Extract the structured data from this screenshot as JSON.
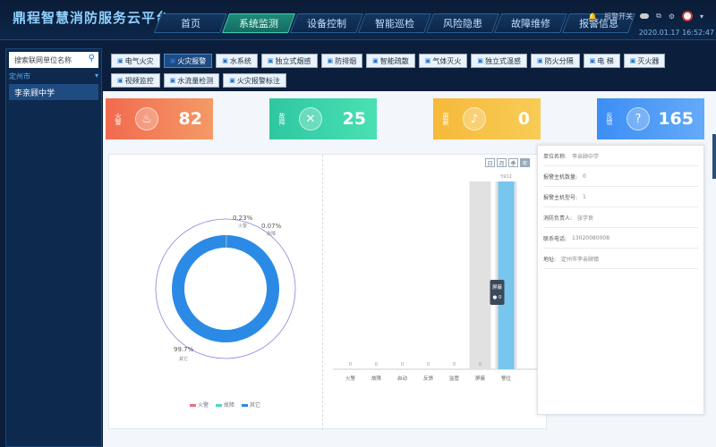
{
  "app": {
    "title": "鼎程智慧消防服务云平台"
  },
  "nav": [
    {
      "label": "首页"
    },
    {
      "label": "系统监测",
      "active": true
    },
    {
      "label": "设备控制"
    },
    {
      "label": "智能巡检"
    },
    {
      "label": "风险隐患"
    },
    {
      "label": "故障维修"
    },
    {
      "label": "报警信息"
    }
  ],
  "header": {
    "alarm_switch": "报警开关",
    "date": "2020.01.17",
    "time": "16:52:47"
  },
  "sidebar": {
    "search_placeholder": "搜索联网单位名称",
    "tree_root": "定州市",
    "items": [
      {
        "label": "李亲顾中学"
      }
    ]
  },
  "filters": [
    {
      "label": "电气火灾"
    },
    {
      "label": "火灾报警",
      "active": true
    },
    {
      "label": "水系统"
    },
    {
      "label": "独立式烟感"
    },
    {
      "label": "防排烟"
    },
    {
      "label": "智能疏散"
    },
    {
      "label": "气体灭火"
    },
    {
      "label": "独立式温感"
    },
    {
      "label": "防火分隔"
    },
    {
      "label": "电 梯"
    },
    {
      "label": "灭火器"
    },
    {
      "label": "视频监控"
    },
    {
      "label": "水流量检测"
    },
    {
      "label": "火灾报警标注"
    }
  ],
  "cards": [
    {
      "label": "火警",
      "value": "82",
      "color1": "#f26a4f",
      "color2": "#f49a66",
      "icon": "fire-icon",
      "glyph": "♨"
    },
    {
      "label": "故障",
      "value": "25",
      "color1": "#2fc7a0",
      "color2": "#49e0b4",
      "icon": "tools-icon",
      "glyph": "✕"
    },
    {
      "label": "屏蔽",
      "value": "0",
      "color1": "#f6b93b",
      "color2": "#f8cc56",
      "icon": "bell-off-icon",
      "glyph": "♪"
    },
    {
      "label": "反馈",
      "value": "165",
      "color1": "#3c8ef5",
      "color2": "#64aaf8",
      "icon": "feedback-icon",
      "glyph": "?"
    }
  ],
  "chart_data": [
    {
      "type": "pie",
      "labels": [
        "火警",
        "故障",
        "其它"
      ],
      "values": [
        0.23,
        0.07,
        99.7
      ],
      "value_labels": [
        "0.23%",
        "0.07%",
        "99.7%"
      ],
      "colors": [
        "#e8707a",
        "#4dd9c0",
        "#2b8ae6"
      ],
      "legend": "bottom"
    },
    {
      "type": "bar",
      "categories": [
        "火警",
        "故障",
        "启动",
        "反馈",
        "监管",
        "屏蔽",
        "警位"
      ],
      "values": [
        0,
        0,
        0,
        0,
        0,
        0,
        5912
      ],
      "value_labels": [
        "0",
        "0",
        "0",
        "0",
        "0",
        "0",
        "5912"
      ],
      "background_categories": [
        "屏蔽",
        "警位"
      ],
      "tooltip": {
        "title": "屏蔽",
        "value": "0"
      }
    }
  ],
  "period_tabs": [
    {
      "label": "日"
    },
    {
      "label": "月"
    },
    {
      "label": "季"
    },
    {
      "label": "年",
      "active": true
    }
  ],
  "unit_info": [
    {
      "key": "单位名称:",
      "value": "李亲顾中学"
    },
    {
      "key": "报警主机数量:",
      "value": "0"
    },
    {
      "key": "报警主机型号:",
      "value": "1"
    },
    {
      "key": "消防负责人:",
      "value": "张学良"
    },
    {
      "key": "联系电话:",
      "value": "13020080008"
    },
    {
      "key": "地址:",
      "value": "定州市李亲顾镇"
    }
  ]
}
